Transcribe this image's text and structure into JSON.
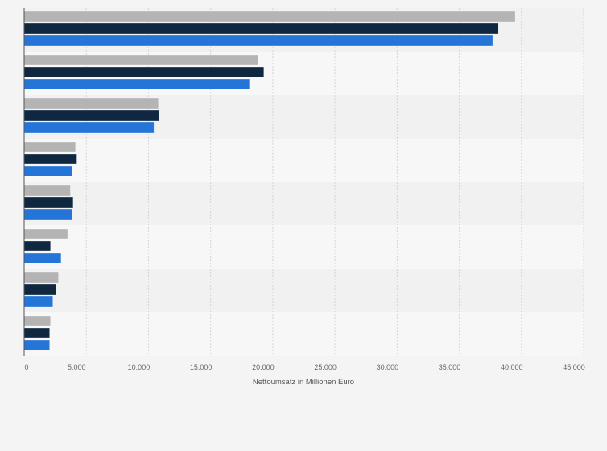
{
  "chart_data": {
    "type": "bar",
    "orientation": "horizontal",
    "title": "",
    "xlabel": "Nettoumsatz in Millionen Euro",
    "ylabel": "",
    "xlim": [
      0,
      45000
    ],
    "x_ticks": [
      0,
      5000,
      10000,
      15000,
      20000,
      25000,
      30000,
      35000,
      40000,
      45000
    ],
    "x_tick_labels": [
      "0",
      "5.000",
      "10.000",
      "15.000",
      "20.000",
      "25.000",
      "30.000",
      "35.000",
      "40.000",
      "45.000"
    ],
    "grid": true,
    "category_count": 8,
    "series": [
      {
        "color": "#b4b4b4",
        "values": [
          39500,
          18800,
          10800,
          4130,
          3720,
          3500,
          2760,
          2120
        ]
      },
      {
        "color": "#0f2740",
        "values": [
          38140,
          19280,
          10830,
          4240,
          3940,
          2120,
          2570,
          2050
        ]
      },
      {
        "color": "#2575d9",
        "values": [
          37690,
          18120,
          10440,
          3870,
          3870,
          2970,
          2310,
          2050
        ]
      }
    ]
  }
}
